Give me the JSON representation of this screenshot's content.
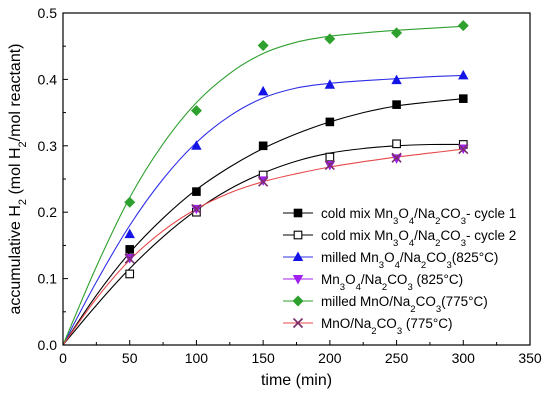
{
  "chart_data": {
    "type": "scatter",
    "title": "",
    "xlabel": "time (min)",
    "ylabel": {
      "parts": [
        {
          "t": "accumulative H",
          "sub": false
        },
        {
          "t": "2",
          "sub": true
        },
        {
          "t": " (mol H",
          "sub": false
        },
        {
          "t": "2",
          "sub": true
        },
        {
          "t": "/mol reactant)",
          "sub": false
        }
      ]
    },
    "xlim": [
      0,
      350
    ],
    "ylim": [
      0,
      0.5
    ],
    "xticks": [
      "0",
      "50",
      "100",
      "150",
      "200",
      "250",
      "300",
      "350"
    ],
    "yticks": [
      "0.0",
      "0.1",
      "0.2",
      "0.3",
      "0.4",
      "0.5"
    ],
    "grid": false,
    "legend_position": "bottom-right",
    "series": [
      {
        "name": "cold mix Mn3O4/Na2CO3- cycle 1",
        "label_parts": [
          {
            "t": "cold mix Mn",
            "sub": false
          },
          {
            "t": "3",
            "sub": true
          },
          {
            "t": "O",
            "sub": false
          },
          {
            "t": "4",
            "sub": true
          },
          {
            "t": "/Na",
            "sub": false
          },
          {
            "t": "2",
            "sub": true
          },
          {
            "t": "CO",
            "sub": false
          },
          {
            "t": "3",
            "sub": true
          },
          {
            "t": "- cycle 1",
            "sub": false
          }
        ],
        "marker": "square-filled",
        "color": "#000000",
        "line_color": "#000000",
        "x": [
          50,
          100,
          150,
          200,
          250,
          300
        ],
        "y": [
          0.144,
          0.231,
          0.3,
          0.336,
          0.362,
          0.371
        ],
        "fit": [
          [
            0,
            0
          ],
          [
            25,
            0.075
          ],
          [
            50,
            0.139
          ],
          [
            75,
            0.191
          ],
          [
            100,
            0.234
          ],
          [
            125,
            0.268
          ],
          [
            150,
            0.296
          ],
          [
            175,
            0.318
          ],
          [
            200,
            0.336
          ],
          [
            225,
            0.35
          ],
          [
            250,
            0.36
          ],
          [
            275,
            0.366
          ],
          [
            300,
            0.371
          ]
        ]
      },
      {
        "name": "cold mix Mn3O4/Na2CO3- cycle 2",
        "label_parts": [
          {
            "t": "cold mix Mn",
            "sub": false
          },
          {
            "t": "3",
            "sub": true
          },
          {
            "t": "O",
            "sub": false
          },
          {
            "t": "4",
            "sub": true
          },
          {
            "t": "/Na",
            "sub": false
          },
          {
            "t": "2",
            "sub": true
          },
          {
            "t": "CO",
            "sub": false
          },
          {
            "t": "3",
            "sub": true
          },
          {
            "t": "- cycle 2",
            "sub": false
          }
        ],
        "marker": "square-open",
        "color": "#000000",
        "line_color": "#000000",
        "x": [
          50,
          100,
          150,
          200,
          250,
          300
        ],
        "y": [
          0.107,
          0.2,
          0.256,
          0.283,
          0.303,
          0.302
        ],
        "fit": [
          [
            0,
            0
          ],
          [
            25,
            0.06
          ],
          [
            50,
            0.115
          ],
          [
            75,
            0.163
          ],
          [
            100,
            0.203
          ],
          [
            125,
            0.235
          ],
          [
            150,
            0.259
          ],
          [
            175,
            0.277
          ],
          [
            200,
            0.289
          ],
          [
            225,
            0.296
          ],
          [
            250,
            0.3
          ],
          [
            275,
            0.302
          ],
          [
            300,
            0.302
          ]
        ]
      },
      {
        "name": "milled Mn3O4/Na2CO3(825°C)",
        "label_parts": [
          {
            "t": "milled Mn",
            "sub": false
          },
          {
            "t": "3",
            "sub": true
          },
          {
            "t": "O",
            "sub": false
          },
          {
            "t": "4",
            "sub": true
          },
          {
            "t": "/Na",
            "sub": false
          },
          {
            "t": "2",
            "sub": true
          },
          {
            "t": "CO",
            "sub": false
          },
          {
            "t": "3",
            "sub": true
          },
          {
            "t": "(825°C)",
            "sub": false
          }
        ],
        "marker": "triangle-up",
        "color": "#1414e6",
        "line_color": "#2f2fe8",
        "x": [
          50,
          100,
          150,
          200,
          250,
          300
        ],
        "y": [
          0.167,
          0.3,
          0.382,
          0.392,
          0.399,
          0.406
        ],
        "fit": [
          [
            0,
            0
          ],
          [
            25,
            0.095
          ],
          [
            50,
            0.18
          ],
          [
            75,
            0.25
          ],
          [
            100,
            0.305
          ],
          [
            125,
            0.345
          ],
          [
            150,
            0.372
          ],
          [
            175,
            0.387
          ],
          [
            200,
            0.394
          ],
          [
            225,
            0.398
          ],
          [
            250,
            0.401
          ],
          [
            275,
            0.404
          ],
          [
            300,
            0.406
          ]
        ]
      },
      {
        "name": "Mn3O4/Na2CO3 (825°C)",
        "label_parts": [
          {
            "t": "Mn",
            "sub": false
          },
          {
            "t": "3",
            "sub": true
          },
          {
            "t": "O",
            "sub": false
          },
          {
            "t": "4",
            "sub": true
          },
          {
            "t": "/Na",
            "sub": false
          },
          {
            "t": "2",
            "sub": true
          },
          {
            "t": "CO",
            "sub": false
          },
          {
            "t": "3",
            "sub": true
          },
          {
            "t": " (825°C)",
            "sub": false
          }
        ],
        "marker": "triangle-down",
        "color": "#a020f0",
        "line_color": "#a020f0",
        "x": [
          50,
          100,
          150,
          200,
          250,
          300
        ],
        "y": [
          0.131,
          0.205,
          0.248,
          0.271,
          0.281,
          0.296
        ],
        "fit": []
      },
      {
        "name": "milled MnO/Na2CO3(775°C)",
        "label_parts": [
          {
            "t": "milled MnO/Na",
            "sub": false
          },
          {
            "t": "2",
            "sub": true
          },
          {
            "t": "CO",
            "sub": false
          },
          {
            "t": "3",
            "sub": true
          },
          {
            "t": "(775°C)",
            "sub": false
          }
        ],
        "marker": "diamond",
        "color": "#2ea02e",
        "line_color": "#2ea02e",
        "x": [
          50,
          100,
          150,
          200,
          250,
          300
        ],
        "y": [
          0.215,
          0.353,
          0.451,
          0.461,
          0.47,
          0.481
        ],
        "fit": [
          [
            0,
            0
          ],
          [
            25,
            0.118
          ],
          [
            50,
            0.222
          ],
          [
            75,
            0.303
          ],
          [
            100,
            0.365
          ],
          [
            125,
            0.409
          ],
          [
            150,
            0.439
          ],
          [
            175,
            0.456
          ],
          [
            200,
            0.465
          ],
          [
            225,
            0.47
          ],
          [
            250,
            0.474
          ],
          [
            275,
            0.477
          ],
          [
            300,
            0.48
          ]
        ]
      },
      {
        "name": "MnO/Na2CO3 (775°C)",
        "label_parts": [
          {
            "t": "MnO/Na",
            "sub": false
          },
          {
            "t": "2",
            "sub": true
          },
          {
            "t": "CO",
            "sub": false
          },
          {
            "t": "3",
            "sub": true
          },
          {
            "t": " (775°C)",
            "sub": false
          }
        ],
        "marker": "x",
        "color": "#7b2e6b",
        "line_color": "#e8484a",
        "x": [
          50,
          100,
          150,
          200,
          250,
          300
        ],
        "y": [
          0.13,
          0.205,
          0.246,
          0.271,
          0.282,
          0.295
        ],
        "fit": [
          [
            0,
            0
          ],
          [
            25,
            0.07
          ],
          [
            50,
            0.128
          ],
          [
            75,
            0.172
          ],
          [
            100,
            0.205
          ],
          [
            125,
            0.229
          ],
          [
            150,
            0.246
          ],
          [
            175,
            0.258
          ],
          [
            200,
            0.268
          ],
          [
            225,
            0.276
          ],
          [
            250,
            0.283
          ],
          [
            275,
            0.289
          ],
          [
            300,
            0.295
          ]
        ]
      }
    ]
  }
}
